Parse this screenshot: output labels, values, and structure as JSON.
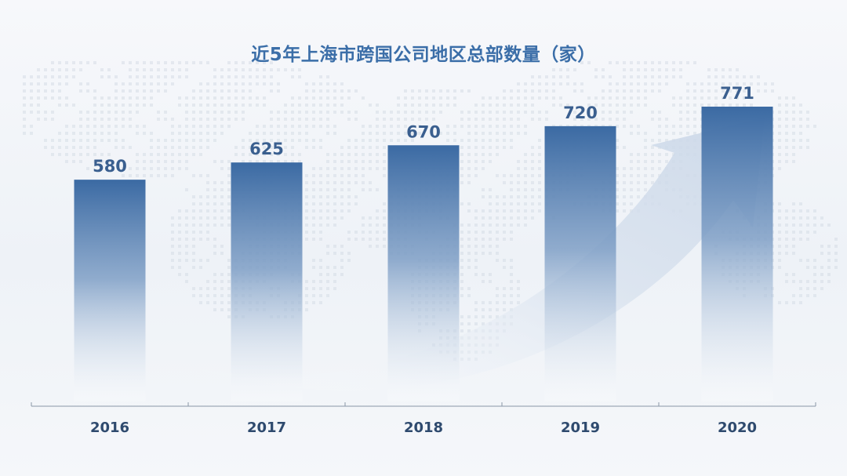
{
  "chart_data": {
    "type": "bar",
    "title": "近5年上海市跨国公司地区总部数量（家）",
    "categories": [
      "2016",
      "2017",
      "2018",
      "2019",
      "2020"
    ],
    "values": [
      580,
      625,
      670,
      720,
      771
    ],
    "xlabel": "",
    "ylabel": "",
    "ylim": [
      0,
      771
    ],
    "grid": false,
    "legend": "none",
    "colors": {
      "bar_top": "#3b6aa3",
      "bar_bottom": "#ffffff",
      "title": "#3b6ea8",
      "value_label": "#3a5f8f",
      "tick_label": "#2e4a6e",
      "axis": "#8a97a8",
      "arrow": "#dfe7f1",
      "dots": "#d5dce6"
    }
  }
}
